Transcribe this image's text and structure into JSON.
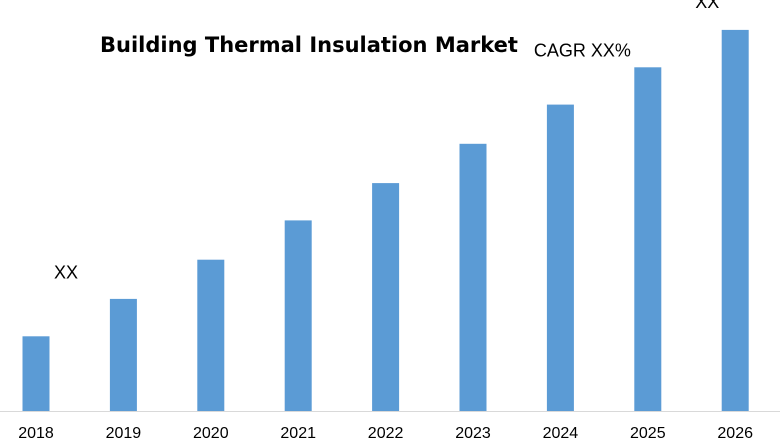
{
  "chart_data": {
    "type": "bar",
    "title": "Building Thermal Insulation Market",
    "xlabel": "",
    "ylabel": "",
    "categories": [
      "2018",
      "2019",
      "2020",
      "2021",
      "2022",
      "2023",
      "2024",
      "2025",
      "2026"
    ],
    "values": [
      2.0,
      3.0,
      4.05,
      5.1,
      6.1,
      7.15,
      8.2,
      9.2,
      10.2
    ],
    "ylim": [
      0,
      11
    ],
    "grid": false,
    "bar_color": "#5b9bd5",
    "axis_color": "#d9d9d9",
    "annotations": [
      {
        "text": "XX",
        "category": "2018"
      },
      {
        "text": "CAGR XX%",
        "category": "2024"
      },
      {
        "text": "XX",
        "category": "2026"
      }
    ]
  }
}
